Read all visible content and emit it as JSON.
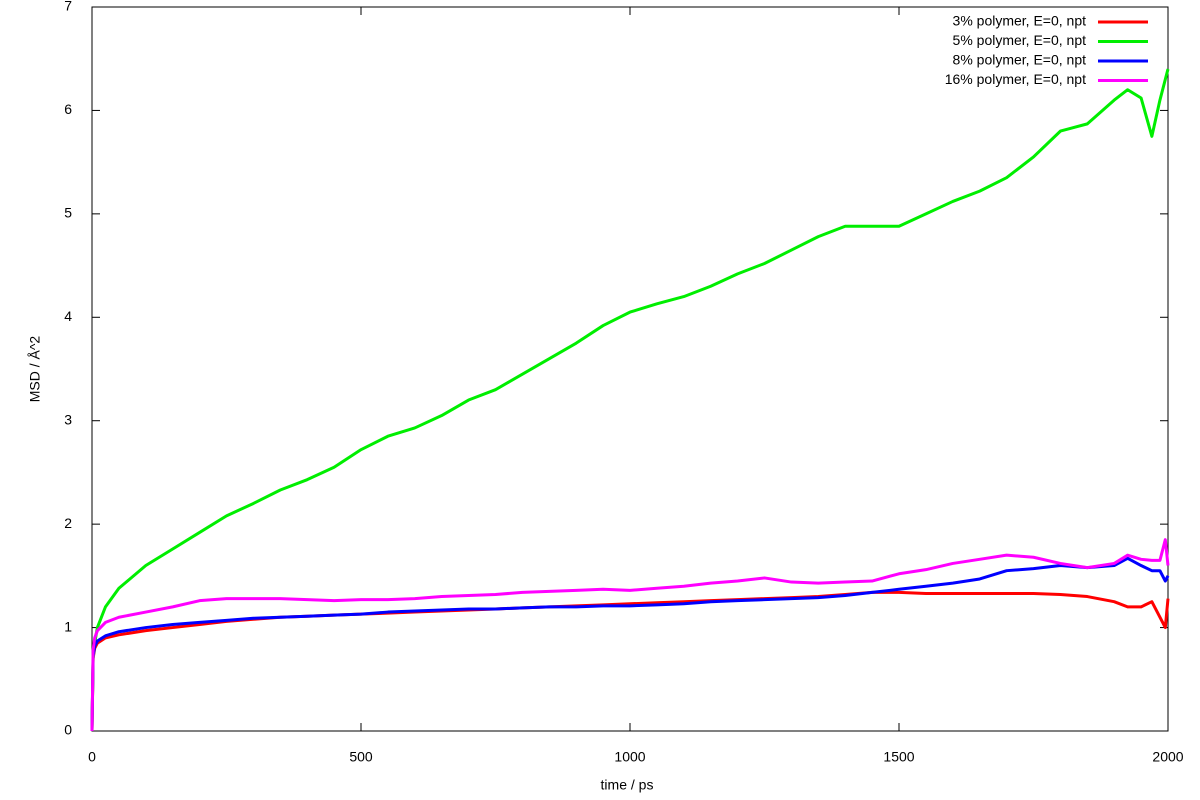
{
  "chart_data": {
    "type": "line",
    "xlabel": "time / ps",
    "ylabel": "MSD / Å^2",
    "x": [
      0,
      2,
      5,
      10,
      25,
      50,
      100,
      150,
      200,
      250,
      300,
      350,
      400,
      450,
      500,
      550,
      600,
      650,
      700,
      750,
      800,
      850,
      900,
      950,
      1000,
      1050,
      1100,
      1150,
      1200,
      1250,
      1300,
      1350,
      1400,
      1450,
      1500,
      1550,
      1600,
      1650,
      1700,
      1750,
      1800,
      1850,
      1900,
      1925,
      1950,
      1970,
      1985,
      1995,
      2000
    ],
    "series": [
      {
        "name": "3% polymer, E=0, npt",
        "color": "#ff0000",
        "values": [
          0,
          0.7,
          0.8,
          0.85,
          0.9,
          0.93,
          0.97,
          1.0,
          1.03,
          1.06,
          1.08,
          1.1,
          1.11,
          1.12,
          1.13,
          1.14,
          1.15,
          1.16,
          1.17,
          1.18,
          1.19,
          1.2,
          1.21,
          1.22,
          1.23,
          1.24,
          1.25,
          1.26,
          1.27,
          1.28,
          1.29,
          1.3,
          1.32,
          1.34,
          1.34,
          1.33,
          1.33,
          1.33,
          1.33,
          1.33,
          1.32,
          1.3,
          1.25,
          1.2,
          1.2,
          1.25,
          1.1,
          1.0,
          1.28
        ]
      },
      {
        "name": "5% polymer, E=0, npt",
        "color": "#00ee00",
        "values": [
          0,
          0.7,
          0.85,
          1.0,
          1.2,
          1.38,
          1.6,
          1.76,
          1.92,
          2.08,
          2.2,
          2.33,
          2.43,
          2.55,
          2.72,
          2.85,
          2.93,
          3.05,
          3.2,
          3.3,
          3.45,
          3.6,
          3.75,
          3.92,
          4.05,
          4.13,
          4.2,
          4.3,
          4.42,
          4.52,
          4.65,
          4.78,
          4.88,
          4.88,
          4.88,
          5.0,
          5.12,
          5.22,
          5.35,
          5.55,
          5.8,
          5.87,
          6.1,
          6.2,
          6.12,
          5.75,
          6.1,
          6.3,
          6.4
        ]
      },
      {
        "name": "8% polymer, E=0, npt",
        "color": "#0000ff",
        "values": [
          0,
          0.72,
          0.82,
          0.87,
          0.92,
          0.96,
          1.0,
          1.03,
          1.05,
          1.07,
          1.09,
          1.1,
          1.11,
          1.12,
          1.13,
          1.15,
          1.16,
          1.17,
          1.18,
          1.18,
          1.19,
          1.2,
          1.2,
          1.21,
          1.21,
          1.22,
          1.23,
          1.25,
          1.26,
          1.27,
          1.28,
          1.29,
          1.31,
          1.34,
          1.37,
          1.4,
          1.43,
          1.47,
          1.55,
          1.57,
          1.6,
          1.58,
          1.6,
          1.67,
          1.6,
          1.55,
          1.55,
          1.45,
          1.5
        ]
      },
      {
        "name": "16% polymer, E=0, npt",
        "color": "#ff00ff",
        "values": [
          0,
          0.78,
          0.9,
          0.97,
          1.05,
          1.1,
          1.15,
          1.2,
          1.26,
          1.28,
          1.28,
          1.28,
          1.27,
          1.26,
          1.27,
          1.27,
          1.28,
          1.3,
          1.31,
          1.32,
          1.34,
          1.35,
          1.36,
          1.37,
          1.36,
          1.38,
          1.4,
          1.43,
          1.45,
          1.48,
          1.44,
          1.43,
          1.44,
          1.45,
          1.52,
          1.56,
          1.62,
          1.66,
          1.7,
          1.68,
          1.62,
          1.58,
          1.62,
          1.7,
          1.66,
          1.65,
          1.65,
          1.85,
          1.6
        ]
      }
    ],
    "xlim": [
      0,
      2000
    ],
    "xticks": [
      0,
      500,
      1000,
      1500,
      2000
    ],
    "ylim": [
      0,
      7
    ],
    "yticks": [
      0,
      1,
      2,
      3,
      4,
      5,
      6,
      7
    ],
    "grid": false,
    "legend": "top-right"
  }
}
